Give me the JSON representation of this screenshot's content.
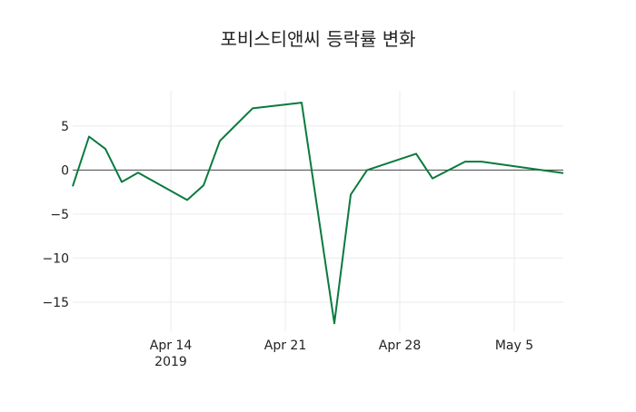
{
  "chart_data": {
    "type": "line",
    "title": "포비스티앤씨 등락률 변화",
    "xlabel": "",
    "ylabel": "",
    "x": [
      "2019-04-08",
      "2019-04-09",
      "2019-04-10",
      "2019-04-11",
      "2019-04-12",
      "2019-04-15",
      "2019-04-16",
      "2019-04-17",
      "2019-04-19",
      "2019-04-22",
      "2019-04-24",
      "2019-04-25",
      "2019-04-26",
      "2019-04-29",
      "2019-04-30",
      "2019-05-02",
      "2019-05-03",
      "2019-05-08"
    ],
    "series": [
      {
        "name": "등락률",
        "color": "#0a7a3e",
        "values": [
          -1.85,
          3.8,
          2.4,
          -1.35,
          -0.3,
          -3.4,
          -1.75,
          3.3,
          7.0,
          7.65,
          -17.4,
          -2.8,
          0.0,
          1.85,
          -0.95,
          0.95,
          0.95,
          -0.35
        ]
      }
    ],
    "x_ticks": [
      {
        "date": "2019-04-14",
        "label": "Apr 14",
        "sublabel": "2019"
      },
      {
        "date": "2019-04-21",
        "label": "Apr 21",
        "sublabel": ""
      },
      {
        "date": "2019-04-28",
        "label": "Apr 28",
        "sublabel": ""
      },
      {
        "date": "2019-05-05",
        "label": "May 5",
        "sublabel": ""
      }
    ],
    "y_ticks": [
      5,
      0,
      -5,
      -10,
      -15
    ],
    "y_tick_labels": [
      "5",
      "0",
      "−5",
      "−10",
      "−15"
    ],
    "xlim": [
      "2019-04-08",
      "2019-05-08"
    ],
    "ylim": [
      -18.3,
      9.0
    ],
    "grid": true,
    "zero_line": true,
    "legend": "none"
  }
}
